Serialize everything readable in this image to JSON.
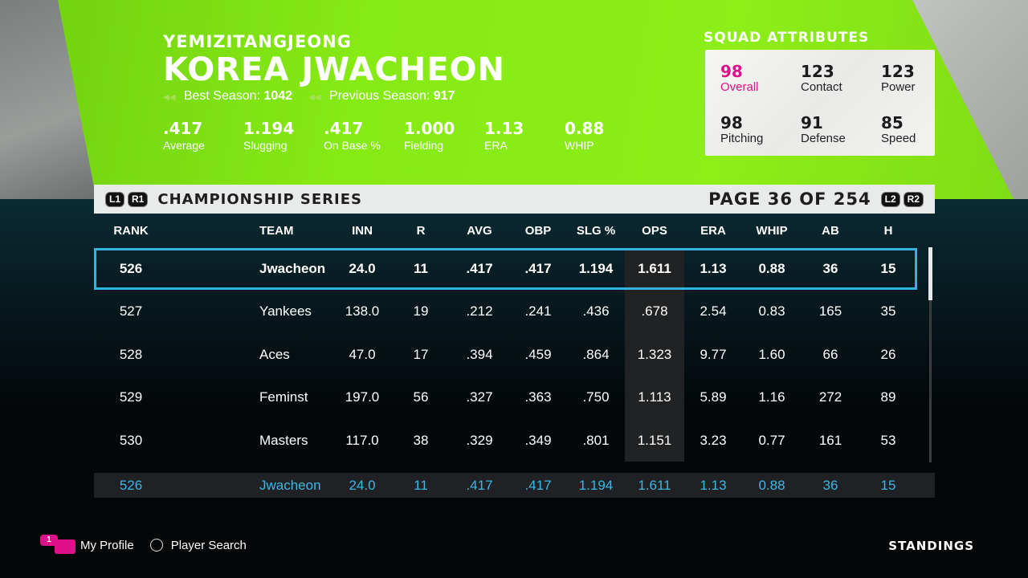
{
  "header": {
    "subtitle": "YEMIZITANGJEONG",
    "title": "KOREA JWACHEON",
    "best_season_label": "Best Season:",
    "best_season_value": "1042",
    "previous_season_label": "Previous Season:",
    "previous_season_value": "917"
  },
  "team_stats": [
    {
      "value": ".417",
      "label": "Average"
    },
    {
      "value": "1.194",
      "label": "Slugging"
    },
    {
      "value": ".417",
      "label": "On Base %"
    },
    {
      "value": "1.000",
      "label": "Fielding"
    },
    {
      "value": "1.13",
      "label": "ERA"
    },
    {
      "value": "0.88",
      "label": "WHIP"
    }
  ],
  "squad": {
    "title": "SQUAD ATTRIBUTES",
    "attributes": [
      {
        "value": "98",
        "label": "Overall"
      },
      {
        "value": "123",
        "label": "Contact"
      },
      {
        "value": "123",
        "label": "Power"
      },
      {
        "value": "98",
        "label": "Pitching"
      },
      {
        "value": "91",
        "label": "Defense"
      },
      {
        "value": "85",
        "label": "Speed"
      }
    ]
  },
  "subbar": {
    "l1": "L1",
    "r1": "R1",
    "series_title": "CHAMPIONSHIP SERIES",
    "page_indicator": "PAGE 36 OF 254",
    "l2": "L2",
    "r2": "R2"
  },
  "table": {
    "headers": [
      "RANK",
      "TEAM",
      "INN",
      "R",
      "AVG",
      "OBP",
      "SLG %",
      "OPS",
      "ERA",
      "WHIP",
      "AB",
      "H"
    ],
    "rows": [
      [
        "526",
        "Jwacheon",
        "24.0",
        "11",
        ".417",
        ".417",
        "1.194",
        "1.611",
        "1.13",
        "0.88",
        "36",
        "15"
      ],
      [
        "527",
        "Yankees",
        "138.0",
        "19",
        ".212",
        ".241",
        ".436",
        ".678",
        "2.54",
        "0.83",
        "165",
        "35"
      ],
      [
        "528",
        "Aces",
        "47.0",
        "17",
        ".394",
        ".459",
        ".864",
        "1.323",
        "9.77",
        "1.60",
        "66",
        "26"
      ],
      [
        "529",
        "Feminst",
        "197.0",
        "56",
        ".327",
        ".363",
        ".750",
        "1.113",
        "5.89",
        "1.16",
        "272",
        "89"
      ],
      [
        "530",
        "Masters",
        "117.0",
        "38",
        ".329",
        ".349",
        ".801",
        "1.151",
        "3.23",
        "0.77",
        "161",
        "53"
      ]
    ],
    "pinned_row": [
      "526",
      "Jwacheon",
      "24.0",
      "11",
      ".417",
      ".417",
      "1.194",
      "1.611",
      "1.13",
      "0.88",
      "36",
      "15"
    ]
  },
  "footer": {
    "profile_badge": "1",
    "my_profile": "My Profile",
    "player_search": "Player Search",
    "standings": "STANDINGS"
  },
  "colors": {
    "accent_green": "#86ea14",
    "selection_blue": "#33b4e0",
    "overall_magenta": "#e0108a"
  }
}
